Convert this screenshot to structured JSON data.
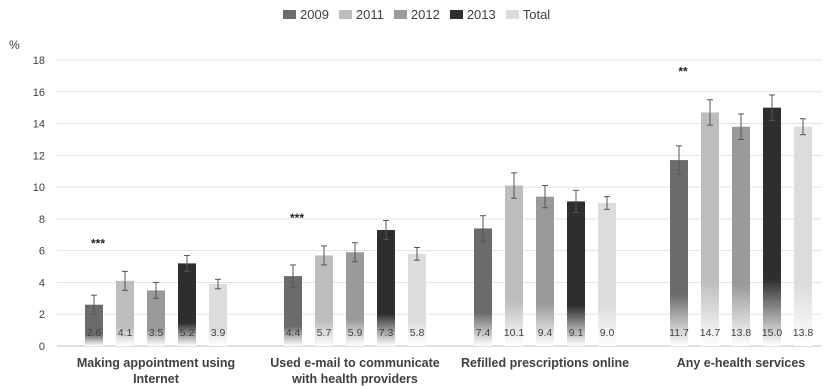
{
  "chart_data": {
    "type": "bar",
    "ylabel": "%",
    "ylim": [
      0,
      18
    ],
    "yticks": [
      0,
      2,
      4,
      6,
      8,
      10,
      12,
      14,
      16,
      18
    ],
    "grid": true,
    "legend_position": "top",
    "categories": [
      [
        "Making appointment using",
        "Internet"
      ],
      [
        "Used e-mail to communicate",
        "with health providers"
      ],
      [
        "Refilled prescriptions online"
      ],
      [
        "Any e-health services"
      ]
    ],
    "series": [
      {
        "name": "2009",
        "color": "#6b6b6b",
        "values": [
          2.6,
          4.4,
          7.4,
          11.7
        ],
        "errors": [
          0.6,
          0.7,
          0.8,
          0.9
        ],
        "labels": [
          "2.6",
          "4.4",
          "7.4",
          "11.7"
        ]
      },
      {
        "name": "2011",
        "color": "#bdbdbd",
        "values": [
          4.1,
          5.7,
          10.1,
          14.7
        ],
        "errors": [
          0.6,
          0.6,
          0.8,
          0.8
        ],
        "labels": [
          "4.1",
          "5.7",
          "10.1",
          "14.7"
        ]
      },
      {
        "name": "2012",
        "color": "#9a9a9a",
        "values": [
          3.5,
          5.9,
          9.4,
          13.8
        ],
        "errors": [
          0.5,
          0.6,
          0.7,
          0.8
        ],
        "labels": [
          "3.5",
          "5.9",
          "9.4",
          "13.8"
        ]
      },
      {
        "name": "2013",
        "color": "#2e2e2e",
        "values": [
          5.2,
          7.3,
          9.1,
          15.0
        ],
        "errors": [
          0.5,
          0.6,
          0.7,
          0.8
        ],
        "labels": [
          "5.2",
          "7.3",
          "9.1",
          "15.0"
        ]
      },
      {
        "name": "Total",
        "color": "#dcdcdc",
        "values": [
          3.9,
          5.8,
          9.0,
          13.8
        ],
        "errors": [
          0.3,
          0.4,
          0.4,
          0.5
        ],
        "labels": [
          "3.9",
          "5.8",
          "9.0",
          "13.8"
        ]
      }
    ],
    "annotations": [
      {
        "category_index": 0,
        "text": "***"
      },
      {
        "category_index": 1,
        "text": "***"
      },
      {
        "category_index": 3,
        "text": "**"
      }
    ]
  }
}
